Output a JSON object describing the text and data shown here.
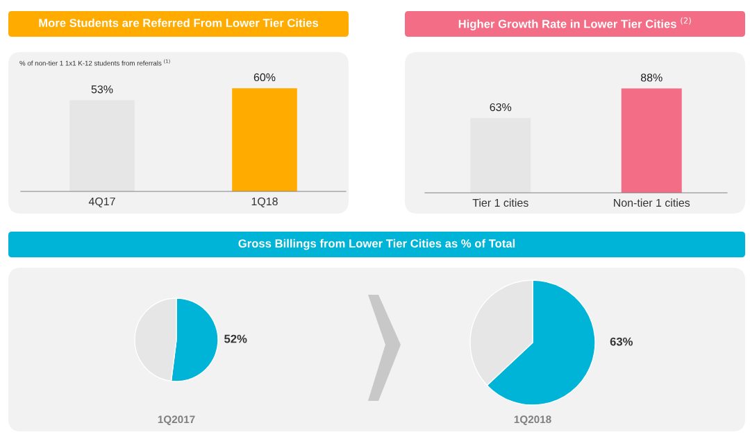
{
  "chart_data": [
    {
      "type": "bar",
      "title": "More Students are Referred From Lower Tier Cities",
      "subtitle": "% of non-tier 1 1x1 K-12 students from referrals $^{(1)}$",
      "categories": [
        "4Q17",
        "1Q18"
      ],
      "values": [
        53,
        60
      ],
      "colors": [
        "#e6e6e6",
        "#ffab00"
      ],
      "value_labels": [
        "53%",
        "60%"
      ]
    },
    {
      "type": "bar",
      "title": "Higher Growth Rate in Lower Tier Cities $^{(2)}$",
      "categories": [
        "Tier 1 cities",
        "Non-tier 1 cities"
      ],
      "values": [
        63,
        88
      ],
      "colors": [
        "#e6e6e6",
        "#f26d85"
      ],
      "value_labels": [
        "63%",
        "88%"
      ]
    },
    {
      "type": "pie",
      "title": "Gross Billings from Lower Tier Cities as % of Total",
      "xlabel": "1Q2017",
      "categories": [
        null,
        null
      ],
      "values": [
        52,
        48
      ],
      "colors": [
        "#00b4d8",
        "#e6e6e6"
      ],
      "value_labels": [
        "52%",
        null
      ]
    },
    {
      "type": "pie",
      "xlabel": "1Q2018",
      "categories": [
        null,
        null
      ],
      "values": [
        63,
        37
      ],
      "colors": [
        "#00b4d8",
        "#e6e6e6"
      ],
      "value_labels": [
        "63%",
        null
      ]
    }
  ]
}
